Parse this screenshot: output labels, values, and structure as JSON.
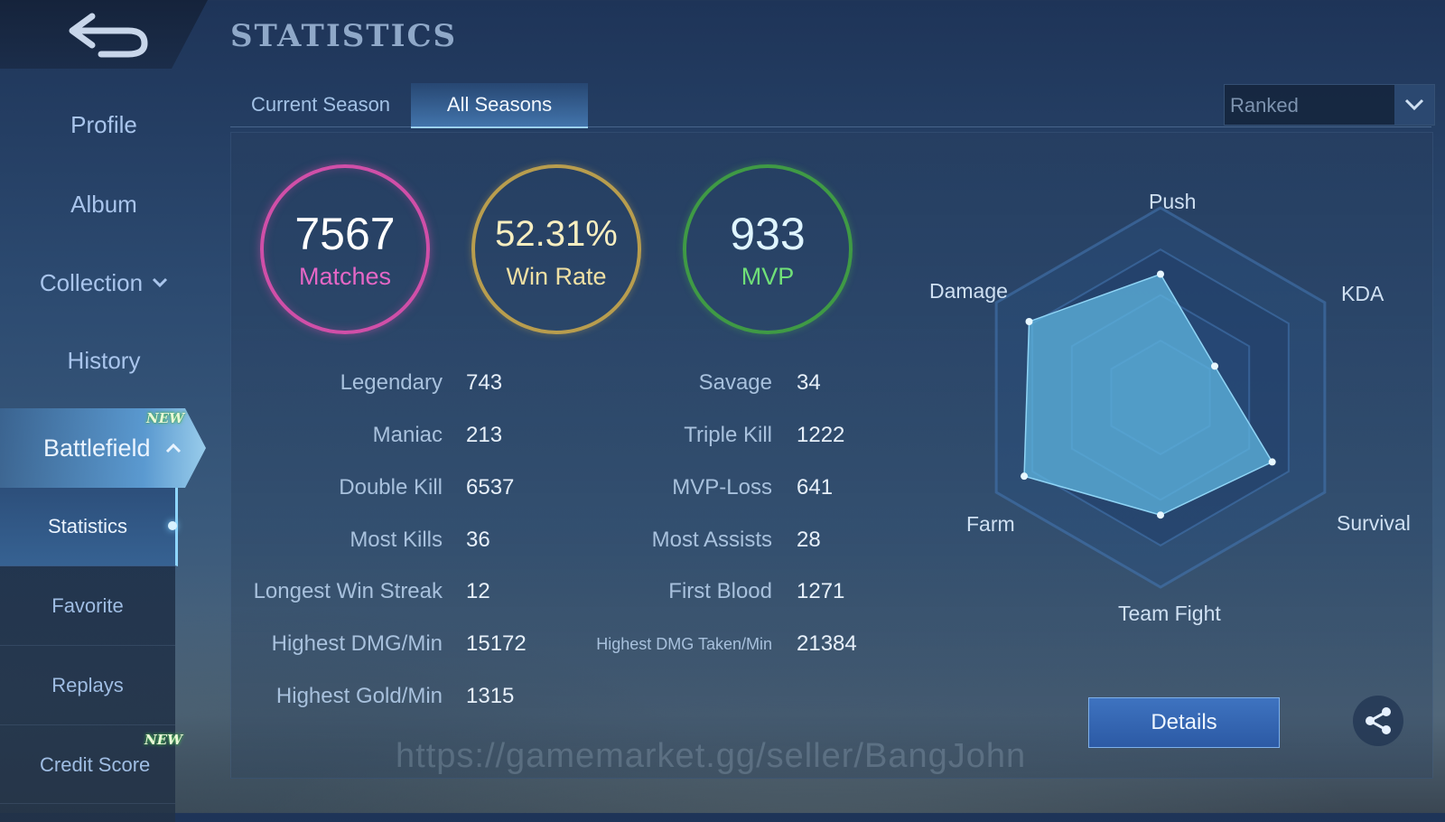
{
  "header": {
    "title": "STATISTICS"
  },
  "sidebar": {
    "items": [
      {
        "label": "Profile"
      },
      {
        "label": "Album"
      },
      {
        "label": "Collection"
      },
      {
        "label": "History"
      },
      {
        "label": "Battlefield",
        "badge": "NEW"
      }
    ],
    "sub_items": [
      {
        "label": "Statistics"
      },
      {
        "label": "Favorite"
      },
      {
        "label": "Replays"
      },
      {
        "label": "Credit Score",
        "badge": "NEW"
      }
    ]
  },
  "tabs": [
    {
      "label": "Current Season"
    },
    {
      "label": "All Seasons"
    }
  ],
  "mode_select": {
    "value": "Ranked"
  },
  "summary": {
    "matches": {
      "value": "7567",
      "label": "Matches"
    },
    "win_rate": {
      "value": "52.31%",
      "label": "Win Rate"
    },
    "mvp": {
      "value": "933",
      "label": "MVP"
    }
  },
  "stats_left": [
    {
      "label": "Legendary",
      "value": "743"
    },
    {
      "label": "Maniac",
      "value": "213"
    },
    {
      "label": "Double Kill",
      "value": "6537"
    },
    {
      "label": "Most Kills",
      "value": "36"
    },
    {
      "label": "Longest Win Streak",
      "value": "12"
    },
    {
      "label": "Highest DMG/Min",
      "value": "15172"
    },
    {
      "label": "Highest Gold/Min",
      "value": "1315"
    }
  ],
  "stats_right": [
    {
      "label": "Savage",
      "value": "34"
    },
    {
      "label": "Triple Kill",
      "value": "1222"
    },
    {
      "label": "MVP-Loss",
      "value": "641"
    },
    {
      "label": "Most Assists",
      "value": "28"
    },
    {
      "label": "First Blood",
      "value": "1271"
    },
    {
      "label": "Highest DMG Taken/Min",
      "value": "21384"
    }
  ],
  "radar": {
    "axes": [
      "Push",
      "KDA",
      "Survival",
      "Team Fight",
      "Farm",
      "Damage"
    ],
    "values": [
      0.65,
      0.33,
      0.68,
      0.62,
      0.83,
      0.8
    ],
    "fill_color": "#5fb6e0"
  },
  "buttons": {
    "details": "Details"
  },
  "watermark": "https://gamemarket.gg/seller/BangJohn"
}
